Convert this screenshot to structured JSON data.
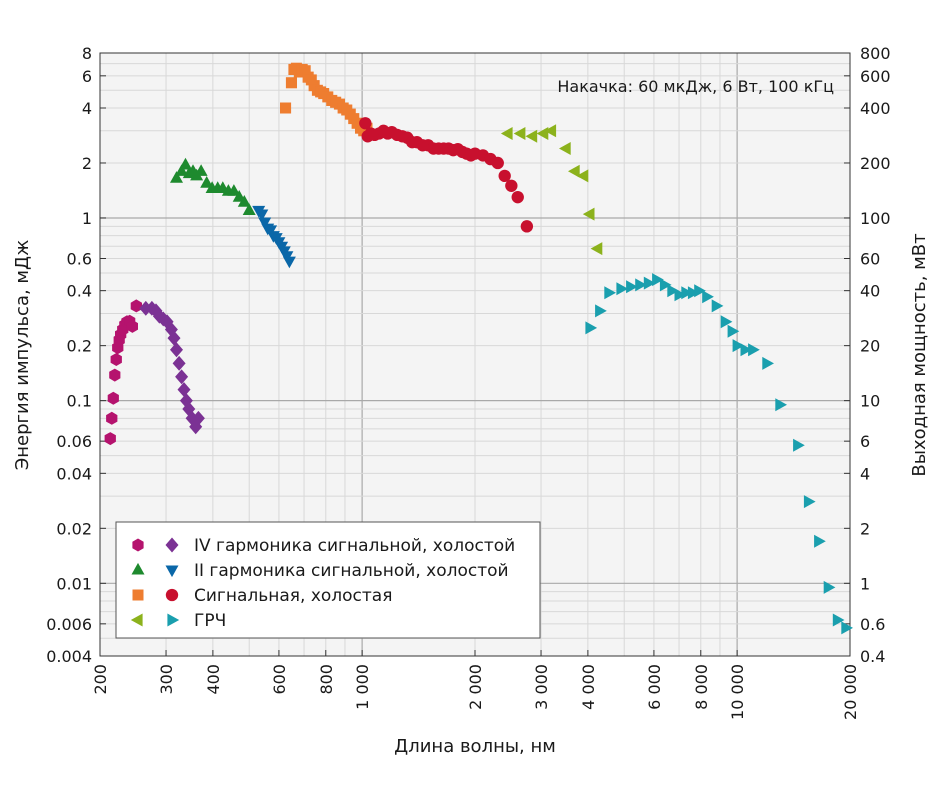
{
  "chart_data": {
    "type": "scatter",
    "x_scale": "log",
    "y_scale": "log",
    "grid": true,
    "xlabel": "Длина волны, нм",
    "ylabel": "Энергия импульса, мДж",
    "ylabel_right": "Выходная мощность, мВт",
    "annotation": "Накачка: 60 мкДж, 6 Вт, 100 кГц",
    "xlim": [
      200,
      20000
    ],
    "ylim": [
      0.004,
      8
    ],
    "ylim_right": [
      0.4,
      800
    ],
    "legend_position": "bottom-left",
    "x_ticks": [
      {
        "v": 200,
        "label": "200"
      },
      {
        "v": 300,
        "label": "300"
      },
      {
        "v": 400,
        "label": "400"
      },
      {
        "v": 600,
        "label": "600"
      },
      {
        "v": 800,
        "label": "800"
      },
      {
        "v": 1000,
        "label": "1 000"
      },
      {
        "v": 2000,
        "label": "2 000"
      },
      {
        "v": 3000,
        "label": "3 000"
      },
      {
        "v": 4000,
        "label": "4 000"
      },
      {
        "v": 6000,
        "label": "6 000"
      },
      {
        "v": 8000,
        "label": "8 000"
      },
      {
        "v": 10000,
        "label": "10 000"
      },
      {
        "v": 20000,
        "label": "20 000"
      }
    ],
    "y_ticks": [
      {
        "v": 8,
        "label": "8"
      },
      {
        "v": 6,
        "label": "6"
      },
      {
        "v": 4,
        "label": "4"
      },
      {
        "v": 2,
        "label": "2"
      },
      {
        "v": 1,
        "label": "1"
      },
      {
        "v": 0.6,
        "label": "0.6"
      },
      {
        "v": 0.4,
        "label": "0.4"
      },
      {
        "v": 0.2,
        "label": "0.2"
      },
      {
        "v": 0.1,
        "label": "0.1"
      },
      {
        "v": 0.06,
        "label": "0.06"
      },
      {
        "v": 0.04,
        "label": "0.04"
      },
      {
        "v": 0.02,
        "label": "0.02"
      },
      {
        "v": 0.01,
        "label": "0.01"
      },
      {
        "v": 0.006,
        "label": "0.006"
      },
      {
        "v": 0.004,
        "label": "0.004"
      }
    ],
    "y_ticks_right": [
      {
        "v": 800,
        "label": "800"
      },
      {
        "v": 600,
        "label": "600"
      },
      {
        "v": 400,
        "label": "400"
      },
      {
        "v": 200,
        "label": "200"
      },
      {
        "v": 100,
        "label": "100"
      },
      {
        "v": 60,
        "label": "60"
      },
      {
        "v": 40,
        "label": "40"
      },
      {
        "v": 20,
        "label": "20"
      },
      {
        "v": 10,
        "label": "10"
      },
      {
        "v": 6,
        "label": "6"
      },
      {
        "v": 4,
        "label": "4"
      },
      {
        "v": 2,
        "label": "2"
      },
      {
        "v": 1,
        "label": "1"
      },
      {
        "v": 0.6,
        "label": "0.6"
      },
      {
        "v": 0.4,
        "label": "0.4"
      }
    ],
    "legend": [
      {
        "label": "IV гармоника сигнальной, холостой",
        "markers": [
          "hexagon",
          "diamond"
        ],
        "colors": [
          "#b5136e",
          "#7b3294"
        ]
      },
      {
        "label": "II гармоника сигнальной, холостой",
        "markers": [
          "triangle-up",
          "triangle-down"
        ],
        "colors": [
          "#1e8a2e",
          "#0a67a8"
        ]
      },
      {
        "label": "Сигнальная, холостая",
        "markers": [
          "square",
          "circle"
        ],
        "colors": [
          "#ee7d30",
          "#c8102e"
        ]
      },
      {
        "label": "ГРЧ",
        "markers": [
          "triangle-left",
          "triangle-right"
        ],
        "colors": [
          "#8cb21c",
          "#1a9fae"
        ]
      }
    ],
    "series": [
      {
        "marker": "hexagon",
        "color": "#b5136e",
        "points": [
          [
            213,
            0.062
          ],
          [
            215,
            0.08
          ],
          [
            217,
            0.103
          ],
          [
            219,
            0.138
          ],
          [
            221,
            0.168
          ],
          [
            223,
            0.195
          ],
          [
            225,
            0.215
          ],
          [
            227,
            0.23
          ],
          [
            230,
            0.245
          ],
          [
            233,
            0.26
          ],
          [
            236,
            0.27
          ],
          [
            240,
            0.272
          ],
          [
            244,
            0.255
          ],
          [
            250,
            0.33
          ]
        ]
      },
      {
        "marker": "diamond",
        "color": "#7b3294",
        "points": [
          [
            265,
            0.32
          ],
          [
            275,
            0.32
          ],
          [
            282,
            0.31
          ],
          [
            288,
            0.29
          ],
          [
            295,
            0.28
          ],
          [
            302,
            0.27
          ],
          [
            310,
            0.245
          ],
          [
            315,
            0.22
          ],
          [
            320,
            0.19
          ],
          [
            325,
            0.16
          ],
          [
            330,
            0.135
          ],
          [
            335,
            0.115
          ],
          [
            340,
            0.1
          ],
          [
            345,
            0.09
          ],
          [
            352,
            0.08
          ],
          [
            360,
            0.072
          ],
          [
            366,
            0.08
          ]
        ]
      },
      {
        "marker": "triangle-up",
        "color": "#1e8a2e",
        "points": [
          [
            320,
            1.65
          ],
          [
            330,
            1.8
          ],
          [
            338,
            1.95
          ],
          [
            346,
            1.75
          ],
          [
            354,
            1.8
          ],
          [
            362,
            1.7
          ],
          [
            372,
            1.8
          ],
          [
            385,
            1.55
          ],
          [
            398,
            1.45
          ],
          [
            412,
            1.45
          ],
          [
            425,
            1.45
          ],
          [
            440,
            1.4
          ],
          [
            455,
            1.4
          ],
          [
            470,
            1.3
          ],
          [
            485,
            1.22
          ],
          [
            500,
            1.1
          ]
        ]
      },
      {
        "marker": "triangle-down",
        "color": "#0a67a8",
        "points": [
          [
            530,
            1.1
          ],
          [
            540,
            1.05
          ],
          [
            550,
            0.95
          ],
          [
            560,
            0.88
          ],
          [
            570,
            0.86
          ],
          [
            580,
            0.8
          ],
          [
            590,
            0.78
          ],
          [
            600,
            0.74
          ],
          [
            610,
            0.7
          ],
          [
            620,
            0.66
          ],
          [
            630,
            0.62
          ],
          [
            640,
            0.58
          ]
        ]
      },
      {
        "marker": "square",
        "color": "#ee7d30",
        "points": [
          [
            625,
            4.0
          ],
          [
            648,
            5.5
          ],
          [
            658,
            6.5
          ],
          [
            668,
            6.6
          ],
          [
            680,
            6.3
          ],
          [
            692,
            6.5
          ],
          [
            705,
            6.4
          ],
          [
            718,
            5.9
          ],
          [
            732,
            5.7
          ],
          [
            745,
            5.3
          ],
          [
            760,
            5.0
          ],
          [
            775,
            4.9
          ],
          [
            790,
            4.8
          ],
          [
            810,
            4.6
          ],
          [
            830,
            4.4
          ],
          [
            850,
            4.3
          ],
          [
            870,
            4.2
          ],
          [
            890,
            4.0
          ],
          [
            910,
            3.9
          ],
          [
            930,
            3.7
          ],
          [
            950,
            3.5
          ],
          [
            970,
            3.3
          ],
          [
            990,
            3.1
          ],
          [
            1010,
            3.0
          ],
          [
            1030,
            3.1
          ]
        ]
      },
      {
        "marker": "circle",
        "color": "#c8102e",
        "points": [
          [
            1020,
            3.3
          ],
          [
            1035,
            2.8
          ],
          [
            1055,
            2.9
          ],
          [
            1080,
            2.85
          ],
          [
            1110,
            2.9
          ],
          [
            1140,
            3.0
          ],
          [
            1170,
            2.9
          ],
          [
            1200,
            2.95
          ],
          [
            1240,
            2.85
          ],
          [
            1280,
            2.8
          ],
          [
            1320,
            2.75
          ],
          [
            1360,
            2.6
          ],
          [
            1400,
            2.6
          ],
          [
            1450,
            2.5
          ],
          [
            1500,
            2.5
          ],
          [
            1550,
            2.4
          ],
          [
            1600,
            2.4
          ],
          [
            1650,
            2.4
          ],
          [
            1700,
            2.4
          ],
          [
            1750,
            2.35
          ],
          [
            1800,
            2.38
          ],
          [
            1850,
            2.3
          ],
          [
            1900,
            2.25
          ],
          [
            1950,
            2.2
          ],
          [
            2000,
            2.25
          ],
          [
            2100,
            2.2
          ],
          [
            2200,
            2.1
          ],
          [
            2300,
            2.0
          ],
          [
            2400,
            1.7
          ],
          [
            2500,
            1.5
          ],
          [
            2600,
            1.3
          ],
          [
            2750,
            0.9
          ]
        ]
      },
      {
        "marker": "triangle-left",
        "color": "#8cb21c",
        "points": [
          [
            2450,
            2.9
          ],
          [
            2650,
            2.9
          ],
          [
            2850,
            2.8
          ],
          [
            3050,
            2.9
          ],
          [
            3200,
            3.0
          ],
          [
            3500,
            2.4
          ],
          [
            3700,
            1.8
          ],
          [
            3900,
            1.7
          ],
          [
            4050,
            1.05
          ],
          [
            4250,
            0.68
          ]
        ]
      },
      {
        "marker": "triangle-right",
        "color": "#1a9fae",
        "points": [
          [
            4050,
            0.25
          ],
          [
            4300,
            0.31
          ],
          [
            4550,
            0.39
          ],
          [
            4900,
            0.41
          ],
          [
            5200,
            0.42
          ],
          [
            5500,
            0.43
          ],
          [
            5800,
            0.44
          ],
          [
            6100,
            0.46
          ],
          [
            6400,
            0.43
          ],
          [
            6700,
            0.4
          ],
          [
            7000,
            0.38
          ],
          [
            7300,
            0.39
          ],
          [
            7600,
            0.39
          ],
          [
            7900,
            0.4
          ],
          [
            8300,
            0.37
          ],
          [
            8800,
            0.33
          ],
          [
            9300,
            0.27
          ],
          [
            9700,
            0.24
          ],
          [
            10000,
            0.2
          ],
          [
            10500,
            0.19
          ],
          [
            11000,
            0.19
          ],
          [
            12000,
            0.16
          ],
          [
            13000,
            0.095
          ],
          [
            14500,
            0.057
          ],
          [
            15500,
            0.028
          ],
          [
            16500,
            0.017
          ],
          [
            17500,
            0.0095
          ],
          [
            18500,
            0.0063
          ],
          [
            19500,
            0.0057
          ]
        ]
      }
    ]
  }
}
